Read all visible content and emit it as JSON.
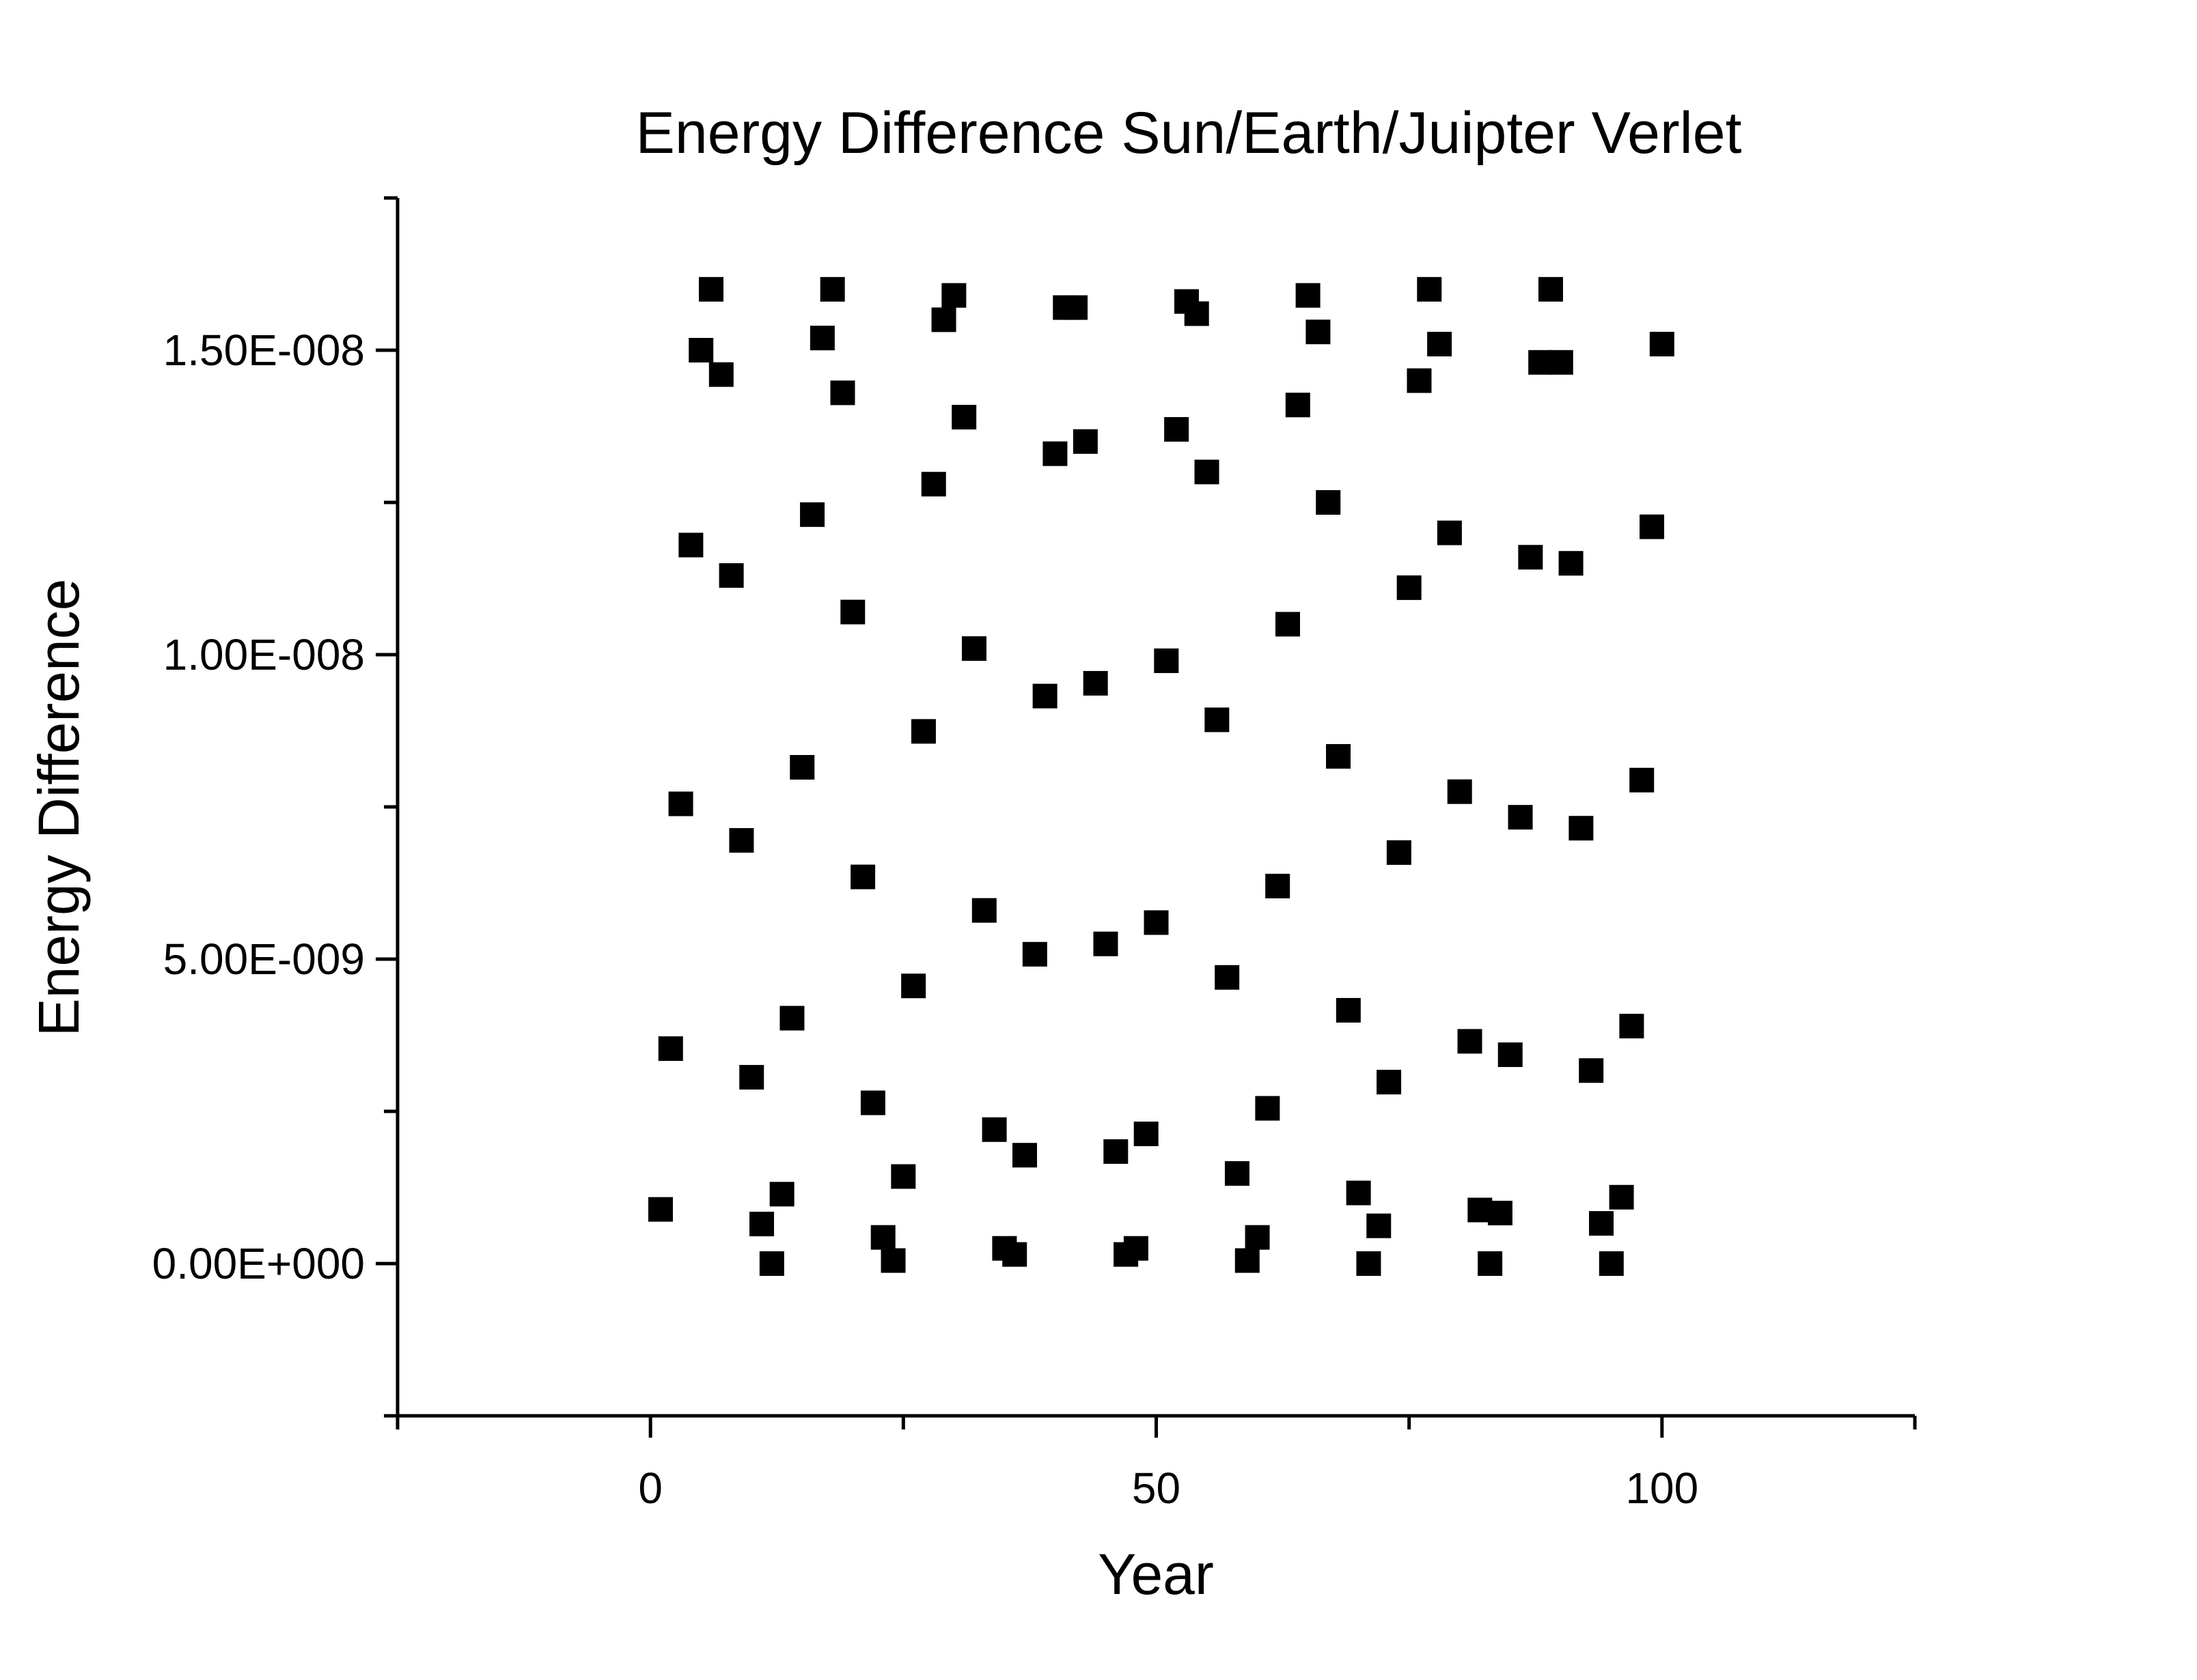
{
  "chart_data": {
    "type": "scatter",
    "title": "Energy Difference Sun/Earth/Juipter Verlet",
    "xlabel": "Year",
    "ylabel": "Energy Difference",
    "xlim": [
      -25,
      125
    ],
    "ylim": [
      -2.5e-09,
      1.75e-08
    ],
    "x_ticks": [
      0,
      50,
      100
    ],
    "x_tick_labels": [
      "0",
      "50",
      "100"
    ],
    "y_ticks": [
      0,
      5e-09,
      1e-08,
      1.5e-08
    ],
    "y_tick_labels": [
      "0.00E+000",
      "5.00E-009",
      "1.00E-008",
      "1.50E-008"
    ],
    "grid": false,
    "legend": "none",
    "marker": "square",
    "marker_color": "#000000",
    "series": [
      {
        "x": [
          1,
          2,
          3,
          4,
          5,
          6,
          7,
          8,
          9,
          10,
          11,
          12,
          13,
          14,
          15,
          16,
          17,
          18,
          19,
          20,
          21,
          22,
          23,
          24,
          25,
          26,
          27,
          28,
          29,
          30,
          31,
          32,
          33,
          34,
          35,
          36,
          37,
          38,
          39,
          40,
          41,
          42,
          43,
          44,
          45,
          46,
          47,
          48,
          49,
          50,
          51,
          52,
          53,
          54,
          55,
          56,
          57,
          58,
          59,
          60,
          61,
          62,
          63,
          64,
          65,
          66,
          67,
          68,
          69,
          70,
          71,
          72,
          73,
          74,
          75,
          76,
          77,
          78,
          79,
          80,
          81,
          82,
          83,
          84,
          85,
          86,
          87,
          88,
          89,
          90,
          91,
          92,
          93,
          94,
          95,
          96,
          97,
          98,
          99,
          100
        ],
        "y": [
          8.9e-10,
          3.53e-09,
          7.55e-09,
          1.18e-08,
          1.5e-08,
          1.6e-08,
          1.46e-08,
          1.13e-08,
          6.95e-09,
          3.06e-09,
          6.5e-10,
          0,
          1.14e-09,
          4.03e-09,
          8.15e-09,
          1.23e-08,
          1.52e-08,
          1.6e-08,
          1.43e-08,
          1.07e-08,
          6.35e-09,
          2.64e-09,
          4.3e-10,
          5e-11,
          1.43e-09,
          4.56e-09,
          8.74e-09,
          1.28e-08,
          1.55e-08,
          1.59e-08,
          1.39e-08,
          1.01e-08,
          5.8e-09,
          2.2e-09,
          2.5e-10,
          1.5e-10,
          1.78e-09,
          5.08e-09,
          9.32e-09,
          1.33e-08,
          1.57e-08,
          1.57e-08,
          1.35e-08,
          9.53e-09,
          5.25e-09,
          1.84e-09,
          1.5e-10,
          2.5e-10,
          2.13e-09,
          5.6e-09,
          9.9e-09,
          1.37e-08,
          1.58e-08,
          1.56e-08,
          1.3e-08,
          8.93e-09,
          4.7e-09,
          1.48e-09,
          5e-11,
          4.3e-10,
          2.55e-09,
          6.2e-09,
          1.05e-08,
          1.41e-08,
          1.59e-08,
          1.53e-08,
          1.25e-08,
          8.33e-09,
          4.16e-09,
          1.16e-09,
          0,
          6.2e-10,
          2.98e-09,
          6.75e-09,
          1.11e-08,
          1.45e-08,
          1.6e-08,
          1.51e-08,
          1.2e-08,
          7.75e-09,
          3.65e-09,
          8.8e-10,
          0,
          8.3e-10,
          3.43e-09,
          7.33e-09,
          1.16e-08,
          1.48e-08,
          1.6e-08,
          1.48e-08,
          1.15e-08,
          7.15e-09,
          3.17e-09,
          6.6e-10,
          0,
          1.09e-09,
          3.9e-09,
          7.94e-09,
          1.21e-08,
          1.51e-08
        ]
      }
    ]
  }
}
